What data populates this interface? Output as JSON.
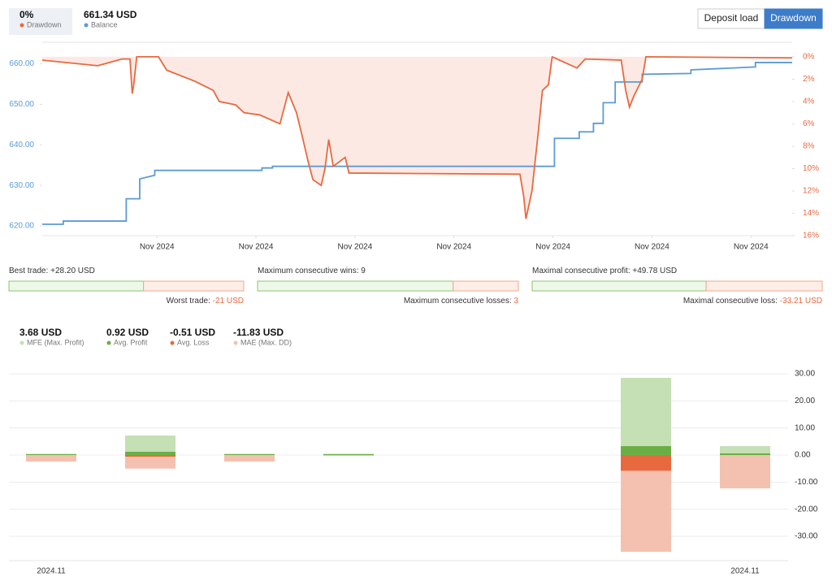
{
  "header": {
    "items": [
      {
        "value": "0%",
        "label": "Drawdown",
        "color": "#e8693f"
      },
      {
        "value": "661.34 USD",
        "label": "Balance",
        "color": "#5b9bd5"
      }
    ],
    "buttons": [
      "Deposit load",
      "Drawdown"
    ]
  },
  "stats": [
    {
      "top": {
        "label": "Best trade:",
        "value": 28.2,
        "value_label": "+28.20 USD"
      },
      "bottom": {
        "label": "Worst trade:",
        "value": -21,
        "value_label": "-21 USD"
      }
    },
    {
      "top": {
        "label": "Maximum consecutive wins:",
        "value": 9,
        "value_label": "9"
      },
      "bottom": {
        "label": "Maximum consecutive losses:",
        "value": 3,
        "value_label": "3"
      }
    },
    {
      "top": {
        "label": "Maximal consecutive profit:",
        "value": 49.78,
        "value_label": "+49.78 USD"
      },
      "bottom": {
        "label": "Maximal consecutive loss:",
        "value": -33.21,
        "value_label": "-33.21 USD"
      }
    }
  ],
  "chart_data": [
    {
      "type": "line",
      "xlim": [
        0,
        100
      ],
      "xticks": [
        {
          "value": 15.3,
          "label": "Nov 2024"
        },
        {
          "value": 28.5,
          "label": "Nov 2024"
        },
        {
          "value": 41.7,
          "label": "Nov 2024"
        },
        {
          "value": 54.9,
          "label": "Nov 2024"
        },
        {
          "value": 68.1,
          "label": "Nov 2024"
        },
        {
          "value": 81.3,
          "label": "Nov 2024"
        },
        {
          "value": 94.5,
          "label": "Nov 2024"
        }
      ],
      "ylim": [
        617.6,
        665.3
      ],
      "yticks": [
        {
          "value": 620,
          "label": "620.00"
        },
        {
          "value": 630,
          "label": "630.00"
        },
        {
          "value": 640,
          "label": "640.00"
        },
        {
          "value": 650,
          "label": "650.00"
        },
        {
          "value": 660,
          "label": "660.00"
        }
      ],
      "y2lim": [
        -1.3,
        16
      ],
      "y2_inverted": true,
      "y2ticks": [
        {
          "value": 0,
          "label": "0%"
        },
        {
          "value": 2,
          "label": "2%"
        },
        {
          "value": 4,
          "label": "4%"
        },
        {
          "value": 6,
          "label": "6%"
        },
        {
          "value": 8,
          "label": "8%"
        },
        {
          "value": 10,
          "label": "10%"
        },
        {
          "value": 12,
          "label": "12%"
        },
        {
          "value": 14,
          "label": "14%"
        },
        {
          "value": 16,
          "label": "16%"
        }
      ],
      "series": [
        {
          "name": "Balance",
          "color": "#5b9bd5",
          "x": [
            0,
            2.8,
            2.8,
            11.2,
            11.2,
            13.0,
            13.0,
            15.0,
            15.0,
            29.3,
            29.3,
            30.7,
            30.7,
            68.3,
            68.3,
            71.6,
            71.6,
            73.5,
            73.5,
            74.8,
            74.8,
            76.4,
            76.4,
            80.0,
            80.0,
            86.5,
            86.5,
            95.1,
            95.1,
            100
          ],
          "values": [
            620.4,
            620.4,
            621.2,
            621.2,
            626.7,
            626.7,
            631.6,
            632.5,
            633.7,
            633.7,
            634.3,
            634.3,
            634.7,
            634.7,
            641.6,
            641.6,
            643.2,
            643.2,
            645.3,
            645.3,
            650.4,
            650.4,
            655.5,
            655.5,
            657.4,
            657.6,
            658.5,
            659.2,
            660.3,
            660.3
          ]
        },
        {
          "name": "Drawdown",
          "color": "#e8693f",
          "axis": "y2",
          "fill": "#fde9e3",
          "x": [
            0,
            7.4,
            10.6,
            11.7,
            12.0,
            12.2,
            12.6,
            15.5,
            16.6,
            20.4,
            22.8,
            23.6,
            25.8,
            26.9,
            29.0,
            31.7,
            32.8,
            33.9,
            34.7,
            35.5,
            36.1,
            37.2,
            37.7,
            38.2,
            38.8,
            40.4,
            40.9,
            63.7,
            64.2,
            64.5,
            65.3,
            66.1,
            66.7,
            67.5,
            68.0,
            71.3,
            72.4,
            77.2,
            77.8,
            78.3,
            78.9,
            80.0,
            80.5,
            100
          ],
          "values": [
            0.3,
            0.8,
            0.2,
            0.2,
            3.3,
            2.5,
            0,
            0,
            1.2,
            2.2,
            3.0,
            4.0,
            4.3,
            5.0,
            5.2,
            6.0,
            3.2,
            5.0,
            7.2,
            9.5,
            11.0,
            11.5,
            10.0,
            7.4,
            9.8,
            9.0,
            10.4,
            10.5,
            12.5,
            14.5,
            12.0,
            7.0,
            3.0,
            2.5,
            0,
            1.0,
            0.2,
            0.3,
            3.0,
            4.5,
            3.5,
            2.0,
            0,
            0.1
          ]
        }
      ]
    },
    {
      "type": "bar",
      "categories": [
        "2024.11",
        null,
        null,
        null,
        null,
        null,
        null,
        "2024.11"
      ],
      "ylim": [
        -39,
        34.5
      ],
      "yticks": [
        {
          "value": 30,
          "label": "30.00"
        },
        {
          "value": 20,
          "label": "20.00"
        },
        {
          "value": 10,
          "label": "10.00"
        },
        {
          "value": 0,
          "label": "0.00"
        },
        {
          "value": -10,
          "label": "-10.00"
        },
        {
          "value": -20,
          "label": "-20.00"
        },
        {
          "value": -30,
          "label": "-30.00"
        }
      ],
      "grid": true,
      "series": [
        {
          "name": "MFE (Max. Profit)",
          "summary": "3.68 USD",
          "color": "#c5e0b4",
          "values": [
            0.5,
            7.2,
            0.5,
            0.5,
            null,
            null,
            28.5,
            3.3
          ]
        },
        {
          "name": "MAE (Max. DD)",
          "summary": "-11.83 USD",
          "color": "#f4c1b0",
          "values": [
            -2.4,
            -5,
            -2.4,
            -0.3,
            null,
            null,
            -35.7,
            -12.3
          ]
        },
        {
          "name": "Avg. Profit",
          "summary": "0.92 USD",
          "color": "#6aaf45",
          "values": [
            0.3,
            1.2,
            0.3,
            0.3,
            null,
            null,
            3.3,
            0.6
          ]
        },
        {
          "name": "Avg. Loss",
          "summary": "-0.51 USD",
          "color": "#e8693f",
          "values": [
            0,
            -0.6,
            0,
            0,
            null,
            null,
            -5.8,
            0
          ]
        }
      ],
      "legend_order": [
        0,
        2,
        3,
        1
      ]
    }
  ]
}
